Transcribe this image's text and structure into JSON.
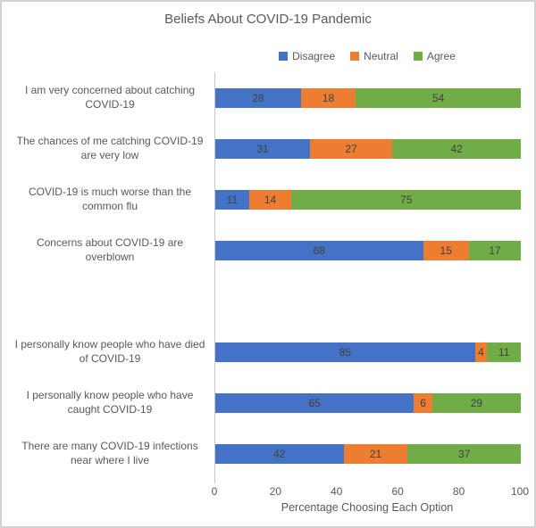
{
  "chart_data": {
    "type": "bar",
    "orientation": "horizontal",
    "stacked": true,
    "title": "Beliefs About COVID-19 Pandemic",
    "xlabel": "Percentage Choosing Each Option",
    "xlim": [
      0,
      100
    ],
    "xticks": [
      0,
      20,
      40,
      60,
      80,
      100
    ],
    "legend_position": "top",
    "grid": false,
    "series": [
      {
        "name": "Disagree",
        "color": "#4472C4"
      },
      {
        "name": "Neutral",
        "color": "#ED7D31"
      },
      {
        "name": "Agree",
        "color": "#70AD47"
      }
    ],
    "rows": [
      {
        "label": "I am very concerned about catching COVID-19",
        "values": [
          28,
          18,
          54
        ]
      },
      {
        "label": "The chances of me catching COVID-19 are very low",
        "values": [
          31,
          27,
          42
        ]
      },
      {
        "label": "COVID-19 is much worse than the common flu",
        "values": [
          11,
          14,
          75
        ]
      },
      {
        "label": "Concerns about COVID-19 are overblown",
        "values": [
          68,
          15,
          17
        ]
      },
      {
        "label": "",
        "values": []
      },
      {
        "label": "I personally know people who have died of COVID-19",
        "values": [
          85,
          4,
          11
        ]
      },
      {
        "label": "I personally know people who have caught COVID-19",
        "values": [
          65,
          6,
          29
        ]
      },
      {
        "label": "There are many COVID-19 infections near where I live",
        "values": [
          42,
          21,
          37
        ]
      }
    ]
  },
  "colors": {
    "axis_line": "#c6c6c6",
    "label_text": "#595959",
    "value_text": "#404040",
    "frame_border": "#d2d2d2"
  }
}
